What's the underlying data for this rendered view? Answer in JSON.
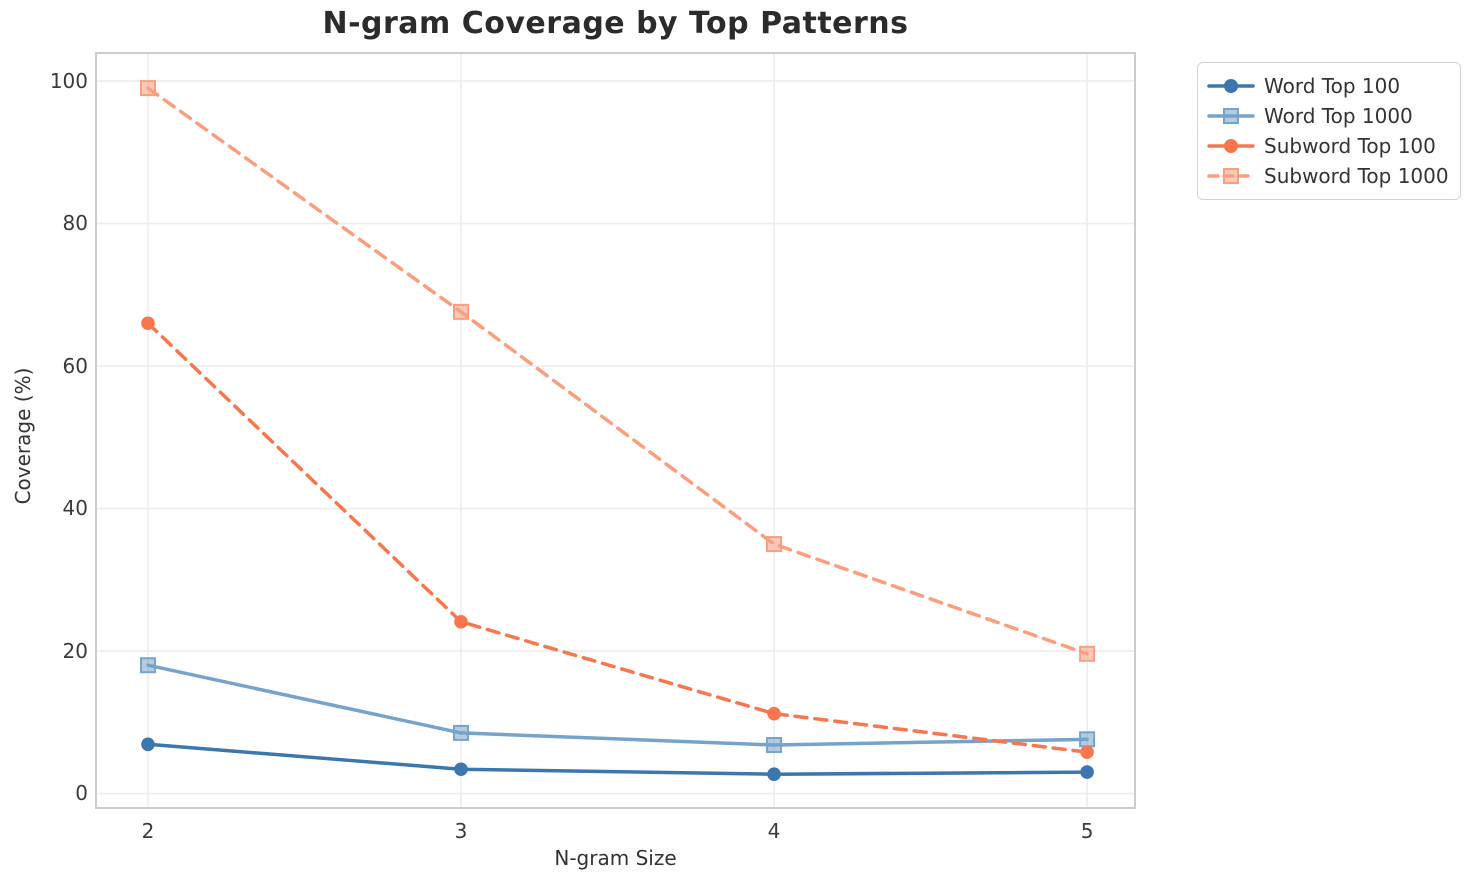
{
  "chart_data": {
    "type": "line",
    "title": "N-gram Coverage by Top Patterns",
    "xlabel": "N-gram Size",
    "ylabel": "Coverage (%)",
    "x": [
      2,
      3,
      4,
      5
    ],
    "xtick_labels": [
      "2",
      "3",
      "4",
      "5"
    ],
    "ytick_values": [
      0,
      20,
      40,
      60,
      80,
      100
    ],
    "ytick_labels": [
      "0",
      "20",
      "40",
      "60",
      "80",
      "100"
    ],
    "xlim": [
      1.834,
      5.153
    ],
    "ylim": [
      -2.04,
      103.93
    ],
    "grid": true,
    "legend_position": "outside-upper-right",
    "series": [
      {
        "name": "Word Top 100",
        "color": "#3b76af",
        "marker": "circle",
        "linestyle": "solid",
        "values": [
          6.9,
          3.4,
          2.7,
          3.0
        ]
      },
      {
        "name": "Word Top 1000",
        "color": "#76a3cb",
        "marker": "square",
        "linestyle": "solid",
        "values": [
          18.0,
          8.5,
          6.8,
          7.6
        ]
      },
      {
        "name": "Subword Top 100",
        "color": "#f8764e",
        "marker": "circle",
        "linestyle": "dashed",
        "values": [
          66.0,
          24.1,
          11.2,
          5.8
        ]
      },
      {
        "name": "Subword Top 1000",
        "color": "#fa9e7d",
        "marker": "square",
        "linestyle": "dashed",
        "values": [
          99.0,
          67.6,
          35.0,
          19.6
        ]
      }
    ],
    "colors": {
      "grid": "#ececec",
      "plot_border": "#cccccc",
      "title_text": "#2b2b2b",
      "tick_text": "#3a3a3a",
      "label_text": "#333333"
    }
  }
}
